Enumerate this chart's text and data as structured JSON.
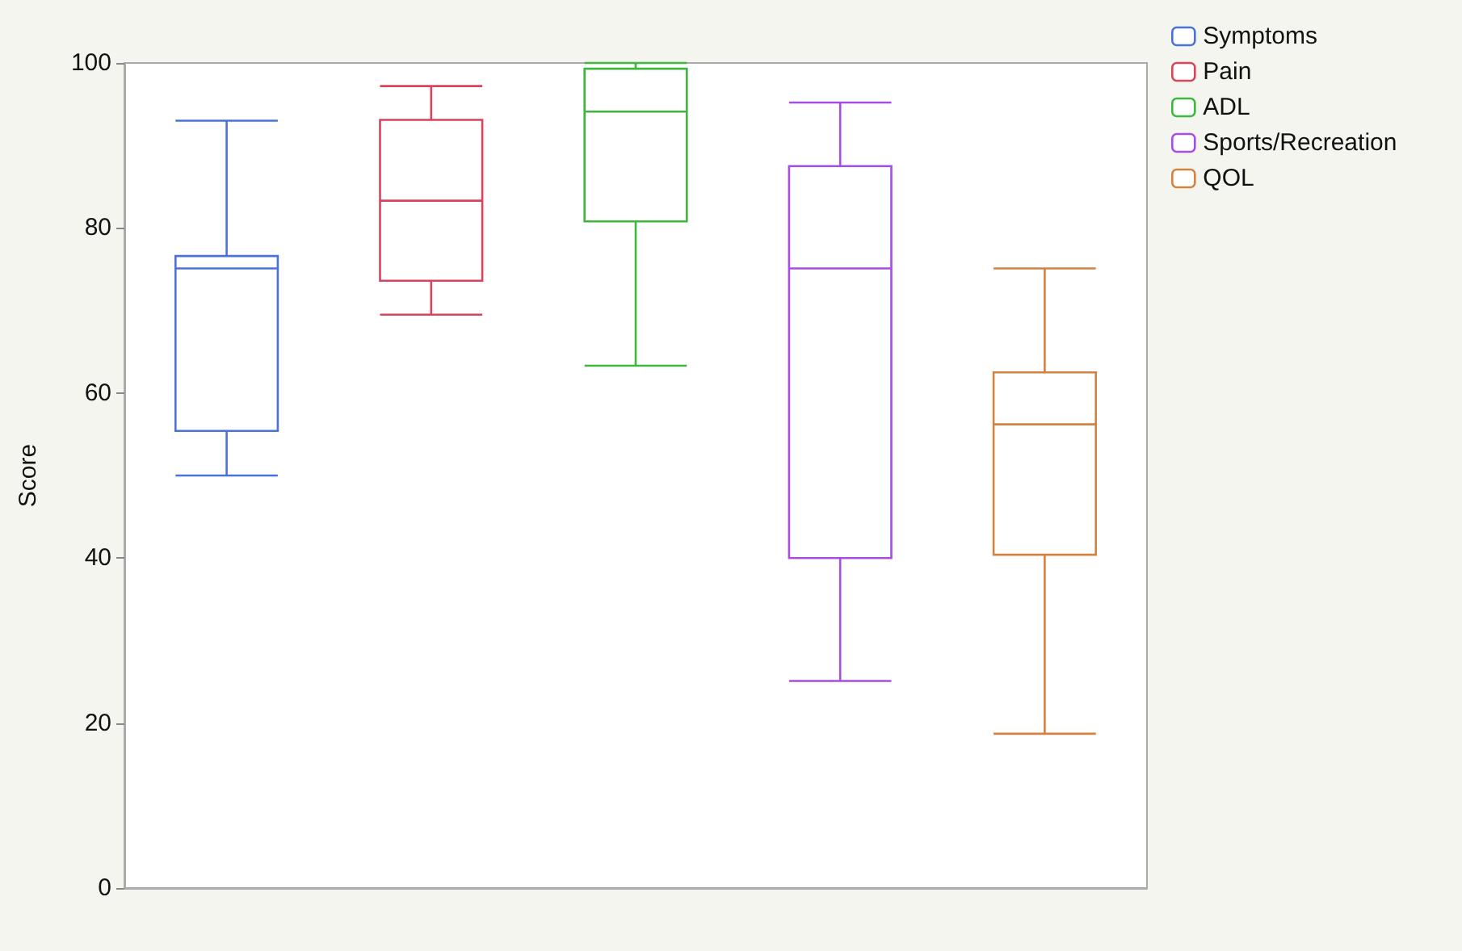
{
  "chart_data": {
    "type": "box",
    "ylabel": "Score",
    "categories": [
      null,
      null,
      null,
      null,
      null
    ],
    "ylim": [
      0,
      100
    ],
    "yticks": [
      0,
      20,
      40,
      60,
      80,
      100
    ],
    "grid": false,
    "legend": "top right",
    "series": [
      {
        "name": "Symptoms",
        "color": "#4a72d9",
        "boxes": [
          {
            "low": 50,
            "q1": 55.4,
            "median": 75.1,
            "q3": 76.6,
            "high": 93
          },
          null,
          null,
          null,
          null
        ]
      },
      {
        "name": "Pain",
        "color": "#d9435c",
        "boxes": [
          null,
          {
            "low": 69.5,
            "q1": 73.6,
            "median": 83.3,
            "q3": 93.1,
            "high": 97.2
          },
          null,
          null,
          null
        ]
      },
      {
        "name": "ADL",
        "color": "#3db83d",
        "boxes": [
          null,
          null,
          {
            "low": 63.3,
            "q1": 80.8,
            "median": 94.1,
            "q3": 99.3,
            "high": 100
          },
          null,
          null
        ]
      },
      {
        "name": "Sports/Recreation",
        "color": "#a64de6",
        "boxes": [
          null,
          null,
          null,
          {
            "low": 25.1,
            "q1": 40,
            "median": 75.1,
            "q3": 87.5,
            "high": 95.2
          },
          null
        ]
      },
      {
        "name": "QOL",
        "color": "#d4823f",
        "boxes": [
          null,
          null,
          null,
          null,
          {
            "low": 18.7,
            "q1": 40.4,
            "median": 56.2,
            "q3": 62.5,
            "high": 75.1
          }
        ]
      }
    ]
  }
}
